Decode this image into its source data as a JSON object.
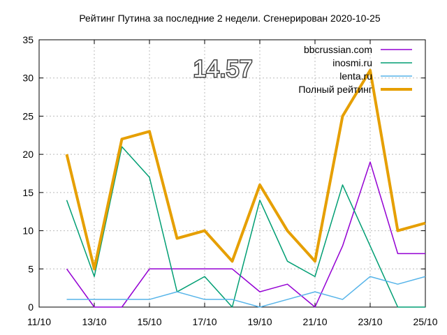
{
  "chart_data": {
    "type": "line",
    "title": "Рейтинг Путина за последние 2 недели. Сгенерирован 2020-10-25",
    "annotation": "14.57",
    "ylim": [
      0,
      35
    ],
    "yticks": [
      0,
      5,
      10,
      15,
      20,
      25,
      30,
      35
    ],
    "xlim": [
      "2020-10-11",
      "2020-10-25"
    ],
    "xticks": [
      "11/10",
      "13/10",
      "15/10",
      "17/10",
      "19/10",
      "21/10",
      "23/10",
      "25/10"
    ],
    "grid": true,
    "legend_position": "top-right",
    "x": [
      "2020-10-12",
      "2020-10-13",
      "2020-10-14",
      "2020-10-15",
      "2020-10-16",
      "2020-10-17",
      "2020-10-18",
      "2020-10-19",
      "2020-10-20",
      "2020-10-21",
      "2020-10-22",
      "2020-10-23",
      "2020-10-24",
      "2020-10-25"
    ],
    "series": [
      {
        "name": "bbcrussian.com",
        "color": "#9400d3",
        "width": 1.5,
        "values": [
          5,
          0,
          0,
          5,
          5,
          5,
          5,
          2,
          3,
          0,
          8,
          19,
          7,
          7
        ]
      },
      {
        "name": "inosmi.ru",
        "color": "#009e73",
        "width": 1.5,
        "values": [
          14,
          4,
          21,
          17,
          2,
          4,
          0,
          14,
          6,
          4,
          16,
          8,
          0,
          0
        ]
      },
      {
        "name": "lenta.ru",
        "color": "#56b4e9",
        "width": 1.5,
        "values": [
          1,
          1,
          1,
          1,
          2,
          1,
          1,
          0,
          1,
          2,
          1,
          4,
          3,
          4
        ]
      },
      {
        "name": "Полный рейтинг",
        "color": "#e69f00",
        "width": 4,
        "values": [
          20,
          5,
          22,
          23,
          9,
          10,
          6,
          16,
          10,
          6,
          25,
          31,
          10,
          11
        ]
      }
    ]
  }
}
